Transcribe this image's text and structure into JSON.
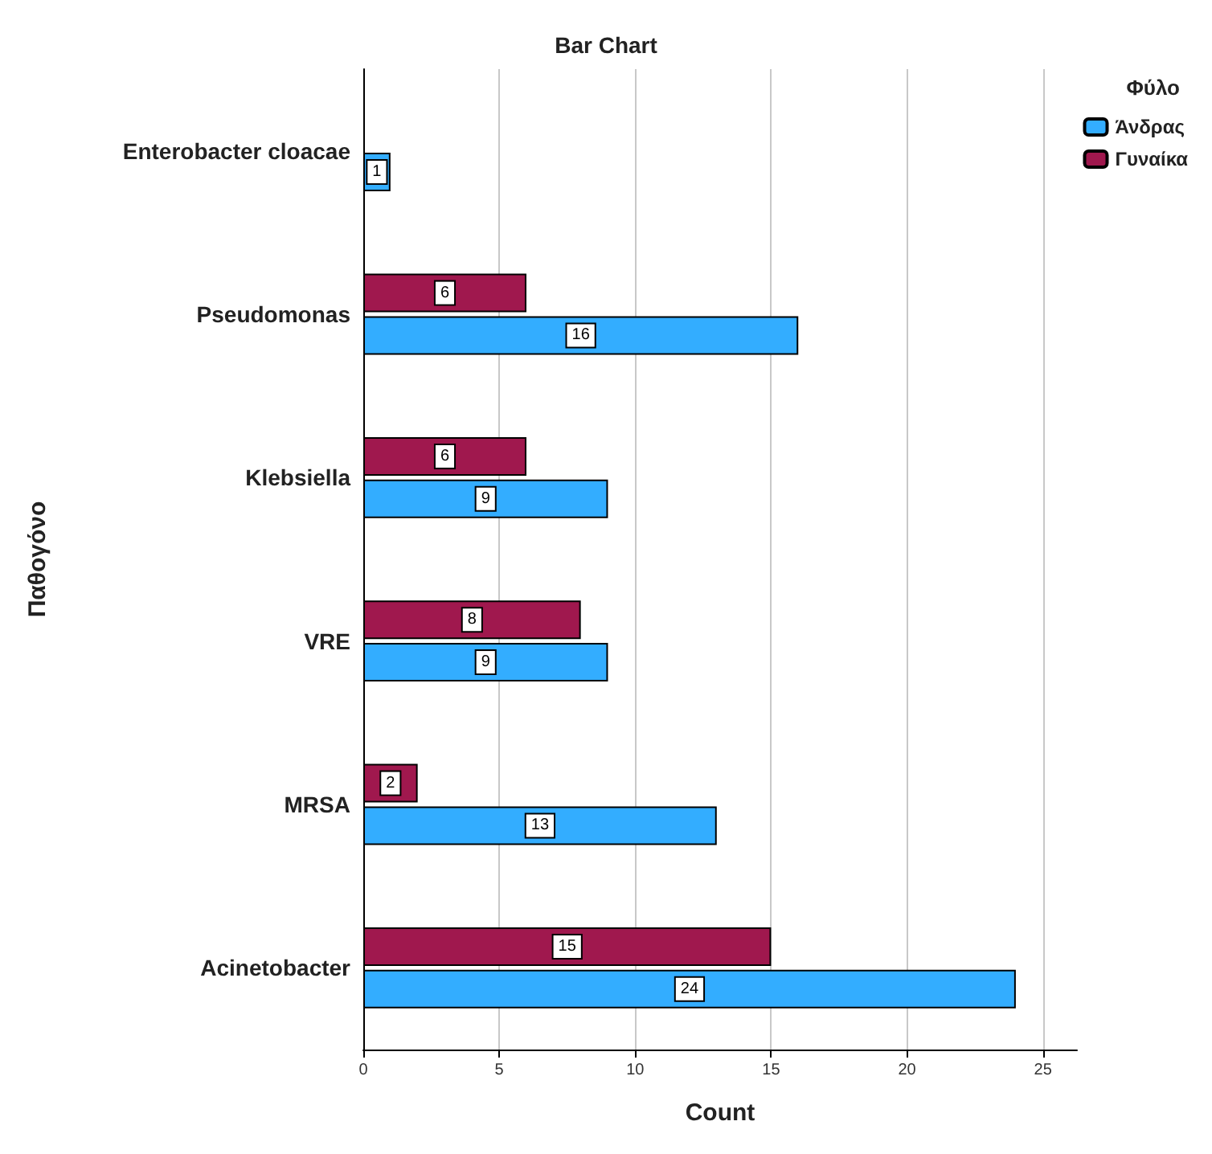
{
  "chart_data": {
    "type": "bar",
    "orientation": "horizontal",
    "title": "Bar Chart",
    "xlabel": "Count",
    "ylabel": "Παθογόνο",
    "legend_title": "Φύλο",
    "categories": [
      "Enterobacter cloacae",
      "Pseudomonas",
      "Klebsiella",
      "VRE",
      "MRSA",
      "Acinetobacter"
    ],
    "series": [
      {
        "name": "Άνδρας",
        "color": "#33adff",
        "values": [
          1,
          16,
          9,
          9,
          13,
          24
        ]
      },
      {
        "name": "Γυναίκα",
        "color": "#a0184e",
        "values": [
          null,
          6,
          6,
          8,
          2,
          15
        ]
      }
    ],
    "xlim": [
      0,
      26.25
    ],
    "xticks": [
      0,
      5,
      10,
      15,
      20,
      25
    ],
    "grid": "x",
    "legend": "top right",
    "data_labels": true
  }
}
